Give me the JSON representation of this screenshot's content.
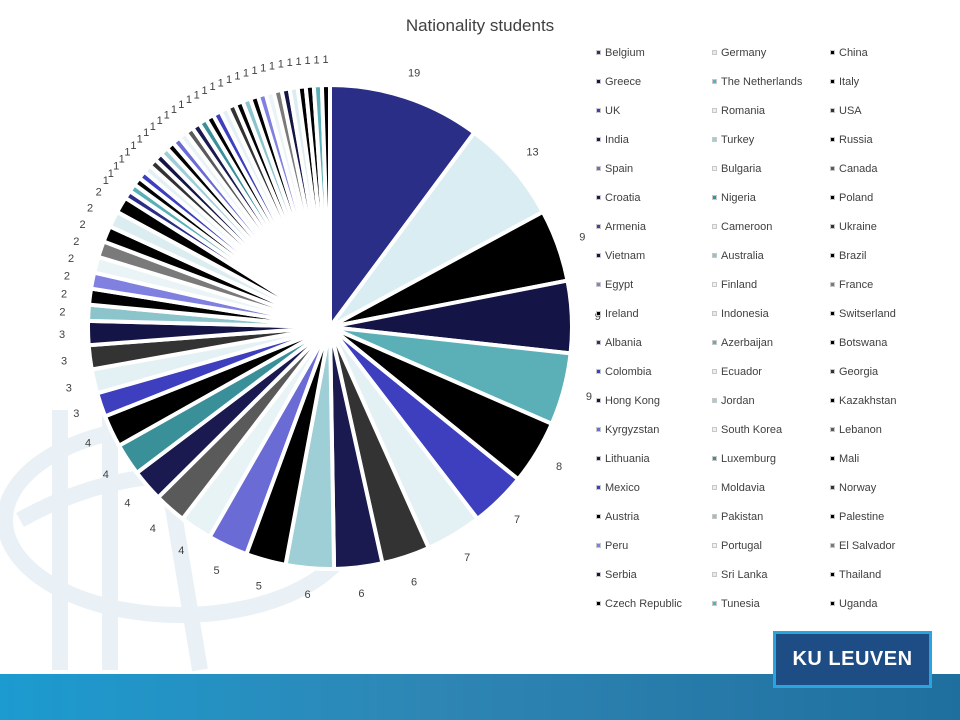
{
  "chart_data": {
    "type": "pie",
    "title": "Nationality students",
    "categories": [
      "Belgium",
      "Germany",
      "China",
      "Greece",
      "The Netherlands",
      "Italy",
      "UK",
      "Romania",
      "USA",
      "India",
      "Turkey",
      "Russia",
      "Spain",
      "Bulgaria",
      "Canada",
      "Croatia",
      "Nigeria",
      "Poland",
      "Armenia",
      "Cameroon",
      "Ukraine",
      "Vietnam",
      "Australia",
      "Brazil",
      "Egypt",
      "Finland",
      "France",
      "Ireland",
      "Indonesia",
      "Switserland",
      "Albania",
      "Azerbaijan",
      "Botswana",
      "Colombia",
      "Ecuador",
      "Georgia",
      "Hong Kong",
      "Jordan",
      "Kazakhstan",
      "Kyrgyzstan",
      "South Korea",
      "Lebanon",
      "Lithuania",
      "Luxemburg",
      "Mali",
      "Mexico",
      "Moldavia",
      "Norway",
      "Austria",
      "Pakistan",
      "Palestine",
      "Peru",
      "Portugal",
      "El Salvador",
      "Serbia",
      "Sri Lanka",
      "Thailand",
      "Czech Republic",
      "Tunesia",
      "Uganda"
    ],
    "values": [
      19,
      13,
      9,
      9,
      9,
      8,
      7,
      7,
      6,
      6,
      6,
      5,
      5,
      4,
      4,
      4,
      4,
      4,
      3,
      3,
      3,
      3,
      2,
      2,
      2,
      2,
      2,
      2,
      2,
      2,
      1,
      1,
      1,
      1,
      1,
      1,
      1,
      1,
      1,
      1,
      1,
      1,
      1,
      1,
      1,
      1,
      1,
      1,
      1,
      1,
      1,
      1,
      1,
      1,
      1,
      1,
      1,
      1,
      1,
      1
    ],
    "colors": [
      "#2b2e86",
      "#d9edf2",
      "#000000",
      "#141446",
      "#5bafb7",
      "#000000",
      "#3d3fbf",
      "#e4f1f4",
      "#333333",
      "#1a1a50",
      "#9fcfd6",
      "#000000",
      "#6b6bd6",
      "#e8f3f6",
      "#5a5a5a",
      "#1a1a50",
      "#3a9099",
      "#000000",
      "#3d3fbf",
      "#e4f1f4",
      "#333333",
      "#141446",
      "#8cc4cc",
      "#000000",
      "#8080e0",
      "#eaf4f7",
      "#7a7a7a",
      "#000000",
      "#dcedf1",
      "#000000",
      "#2b2e86",
      "#5bafb7",
      "#000000",
      "#3d3fbf",
      "#e4f1f4",
      "#333333",
      "#141446",
      "#9fcfd6",
      "#000000",
      "#6b6bd6",
      "#e8f3f6",
      "#5a5a5a",
      "#1a1a50",
      "#3a9099",
      "#000000",
      "#3d3fbf",
      "#e4f1f4",
      "#333333",
      "#000000",
      "#8cc4cc",
      "#000000",
      "#8080e0",
      "#eaf4f7",
      "#7a7a7a",
      "#141446",
      "#dcedf1",
      "#000000",
      "#000000",
      "#5bafb7",
      "#000000"
    ],
    "legend_position": "right"
  },
  "logo": {
    "text": "KU LEUVEN"
  }
}
